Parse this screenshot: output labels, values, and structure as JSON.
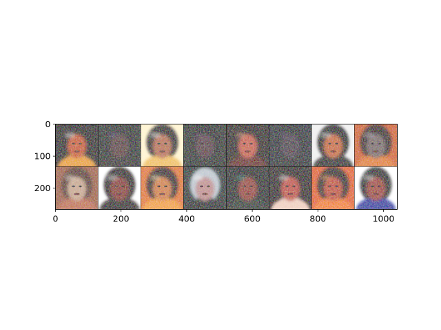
{
  "image_grid": {
    "description_role": "grid of 16 generated face samples (2 rows x 8 columns)",
    "rows": 2,
    "columns": 8,
    "x_axis": {
      "ticks": [
        "0",
        "200",
        "400",
        "600",
        "800",
        "1000"
      ],
      "range": [
        0,
        1042
      ]
    },
    "y_axis": {
      "ticks": [
        "0",
        "100",
        "200"
      ],
      "range": [
        0,
        266
      ]
    },
    "tiles": [
      {
        "bg": "#1a0f08",
        "hair": "#0c0604",
        "face": "#c85a20",
        "shirt": "#e8a020",
        "accent": "#ffffff"
      },
      {
        "bg": "#1b2a22",
        "hair": "#141e1a",
        "face": "#5a3a3a",
        "shirt": "#2a2420",
        "accent": "#6a4a8a"
      },
      {
        "bg": "#fff4d0",
        "hair": "#181008",
        "face": "#b87050",
        "shirt": "#f0c060",
        "accent": "#ffffff"
      },
      {
        "bg": "#1e2820",
        "hair": "#101814",
        "face": "#5a3a44",
        "shirt": "#18201c",
        "accent": "#6a3a6a"
      },
      {
        "bg": "#200a06",
        "hair": "#140604",
        "face": "#c8604a",
        "shirt": "#6a1a10",
        "accent": "#f0b090"
      },
      {
        "bg": "#1a2430",
        "hair": "#101820",
        "face": "#4a3a4a",
        "shirt": "#1a2028",
        "accent": "#5a4a6a"
      },
      {
        "bg": "#f0f0f0",
        "hair": "#000000",
        "face": "#c86a30",
        "shirt": "#181818",
        "accent": "#ffffff"
      },
      {
        "bg": "#d06010",
        "hair": "#2a1008",
        "face": "#7a6a6a",
        "shirt": "#e08020",
        "accent": "#c0c0d0"
      },
      {
        "bg": "#a06040",
        "hair": "#5a3020",
        "face": "#c8a890",
        "shirt": "#c07050",
        "accent": "#e8e0d8"
      },
      {
        "bg": "#ffffff",
        "hair": "#0a0604",
        "face": "#8a3020",
        "shirt": "#1a1010",
        "accent": "#f0f0f0"
      },
      {
        "bg": "#e07820",
        "hair": "#2a1008",
        "face": "#d08040",
        "shirt": "#f0a030",
        "accent": "#fff0c0"
      },
      {
        "bg": "#1a2a2a",
        "hair": "#c0c8d0",
        "face": "#c09090",
        "shirt": "#101818",
        "accent": "#f0f0f0"
      },
      {
        "bg": "#0a1a18",
        "hair": "#0a1010",
        "face": "#9a4030",
        "shirt": "#203028",
        "accent": "#40a090"
      },
      {
        "bg": "#200808",
        "hair": "#140404",
        "face": "#c05040",
        "shirt": "#f0d0c0",
        "accent": "#ffffff"
      },
      {
        "bg": "#e06010",
        "hair": "#200804",
        "face": "#c05030",
        "shirt": "#f08020",
        "accent": "#ffb060"
      },
      {
        "bg": "#ffffff",
        "hair": "#101010",
        "face": "#a04030",
        "shirt": "#2030a0",
        "accent": "#f0f0f0"
      }
    ]
  }
}
